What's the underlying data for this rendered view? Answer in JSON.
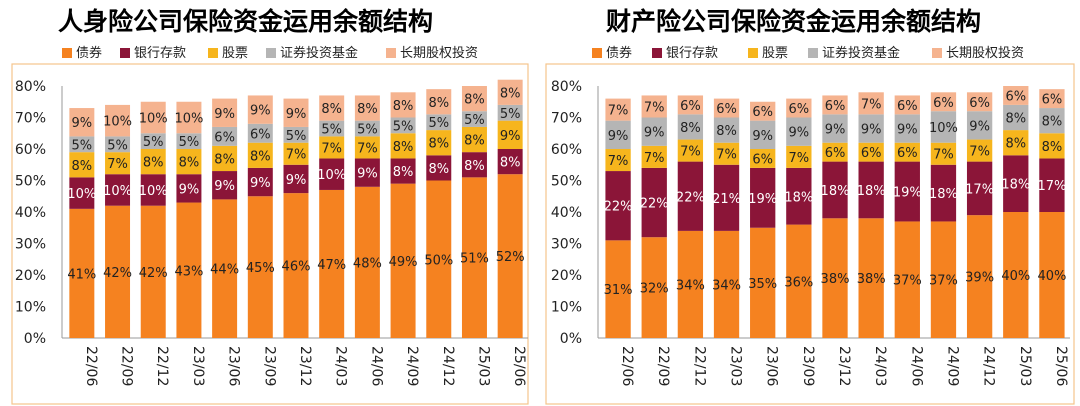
{
  "colors": {
    "bond": "#f58220",
    "deposit": "#8b1538",
    "stock": "#f6b51d",
    "fund": "#b5b5b5",
    "equity": "#f5b38f",
    "border": "#f5c48c"
  },
  "charts": [
    {
      "title": "人身险公司保险资金运用余额结构",
      "legend": [
        "债券",
        "银行存款",
        "股票",
        "证券投资基金",
        "长期股权投资"
      ]
    },
    {
      "title": "财产险公司保险资金运用余额结构",
      "legend": [
        "债券",
        "银行存款",
        "股票",
        "证券投资基金",
        "长期股权投资"
      ]
    }
  ],
  "chart_data": [
    {
      "type": "bar",
      "stacked": true,
      "title": "人身险公司保险资金运用余额结构",
      "categories": [
        "22/06",
        "22/09",
        "22/12",
        "23/03",
        "23/06",
        "23/09",
        "23/12",
        "24/03",
        "24/06",
        "24/09",
        "24/12",
        "25/03",
        "25/06"
      ],
      "ylim": [
        0,
        80
      ],
      "yticks": [
        "0%",
        "10%",
        "20%",
        "30%",
        "40%",
        "50%",
        "60%",
        "70%",
        "80%"
      ],
      "series": [
        {
          "name": "债券",
          "values": [
            41,
            42,
            42,
            43,
            44,
            45,
            46,
            47,
            48,
            49,
            50,
            51,
            52
          ],
          "labels": [
            "41%",
            "42%",
            "42%",
            "43%",
            "44%",
            "45%",
            "46%",
            "47%",
            "48%",
            "49%",
            "50%",
            "51%",
            "52%"
          ]
        },
        {
          "name": "银行存款",
          "values": [
            10,
            10,
            10,
            9,
            9,
            9,
            9,
            10,
            9,
            8,
            8,
            8,
            8
          ],
          "labels": [
            "10%",
            "10%",
            "10%",
            "9%",
            "9%",
            "9%",
            "9%",
            "10%",
            "9%",
            "8%",
            "8%",
            "8%",
            "8%"
          ]
        },
        {
          "name": "股票",
          "values": [
            8,
            7,
            8,
            8,
            8,
            8,
            7,
            7,
            7,
            8,
            8,
            8,
            9
          ],
          "labels": [
            "8%",
            "7%",
            "8%",
            "8%",
            "8%",
            "8%",
            "7%",
            "7%",
            "7%",
            "8%",
            "8%",
            "8%",
            "9%"
          ]
        },
        {
          "name": "证券投资基金",
          "values": [
            5,
            5,
            5,
            5,
            6,
            6,
            5,
            5,
            5,
            5,
            5,
            5,
            5
          ],
          "labels": [
            "5%",
            "5%",
            "5%",
            "5%",
            "6%",
            "6%",
            "5%",
            "5%",
            "5%",
            "5%",
            "5%",
            "5%",
            "5%"
          ]
        },
        {
          "name": "长期股权投资",
          "values": [
            9,
            10,
            10,
            10,
            9,
            9,
            9,
            8,
            8,
            8,
            8,
            8,
            8
          ],
          "labels": [
            "9%",
            "10%",
            "10%",
            "10%",
            "9%",
            "9%",
            "9%",
            "8%",
            "8%",
            "8%",
            "8%",
            "8%",
            "8%"
          ]
        }
      ]
    },
    {
      "type": "bar",
      "stacked": true,
      "title": "财产险公司保险资金运用余额结构",
      "categories": [
        "22/06",
        "22/09",
        "22/12",
        "23/03",
        "23/06",
        "23/09",
        "23/12",
        "24/03",
        "24/06",
        "24/09",
        "24/12",
        "25/03",
        "25/06"
      ],
      "ylim": [
        0,
        80
      ],
      "yticks": [
        "0%",
        "10%",
        "20%",
        "30%",
        "40%",
        "50%",
        "60%",
        "70%",
        "80%"
      ],
      "series": [
        {
          "name": "债券",
          "values": [
            31,
            32,
            34,
            34,
            35,
            36,
            38,
            38,
            37,
            37,
            39,
            40,
            40
          ],
          "labels": [
            "31%",
            "32%",
            "34%",
            "34%",
            "35%",
            "36%",
            "38%",
            "38%",
            "37%",
            "37%",
            "39%",
            "40%",
            "40%"
          ]
        },
        {
          "name": "银行存款",
          "values": [
            22,
            22,
            22,
            21,
            19,
            18,
            18,
            18,
            19,
            18,
            17,
            18,
            17
          ],
          "labels": [
            "22%",
            "22%",
            "22%",
            "21%",
            "19%",
            "18%",
            "18%",
            "18%",
            "19%",
            "18%",
            "17%",
            "18%",
            "17%"
          ]
        },
        {
          "name": "股票",
          "values": [
            7,
            7,
            7,
            7,
            6,
            7,
            6,
            6,
            6,
            7,
            7,
            8,
            8
          ],
          "labels": [
            "7%",
            "7%",
            "7%",
            "7%",
            "6%",
            "7%",
            "6%",
            "6%",
            "6%",
            "7%",
            "7%",
            "8%",
            "8%"
          ]
        },
        {
          "name": "证券投资基金",
          "values": [
            9,
            9,
            8,
            8,
            9,
            9,
            9,
            9,
            9,
            10,
            9,
            8,
            8
          ],
          "labels": [
            "9%",
            "9%",
            "8%",
            "8%",
            "9%",
            "9%",
            "9%",
            "9%",
            "9%",
            "10%",
            "9%",
            "8%",
            "8%"
          ]
        },
        {
          "name": "长期股权投资",
          "values": [
            7,
            7,
            6,
            6,
            6,
            6,
            6,
            7,
            6,
            6,
            6,
            6,
            6
          ],
          "labels": [
            "7%",
            "7%",
            "6%",
            "6%",
            "6%",
            "6%",
            "6%",
            "7%",
            "6%",
            "6%",
            "6%",
            "6%",
            "6%"
          ]
        }
      ]
    }
  ]
}
